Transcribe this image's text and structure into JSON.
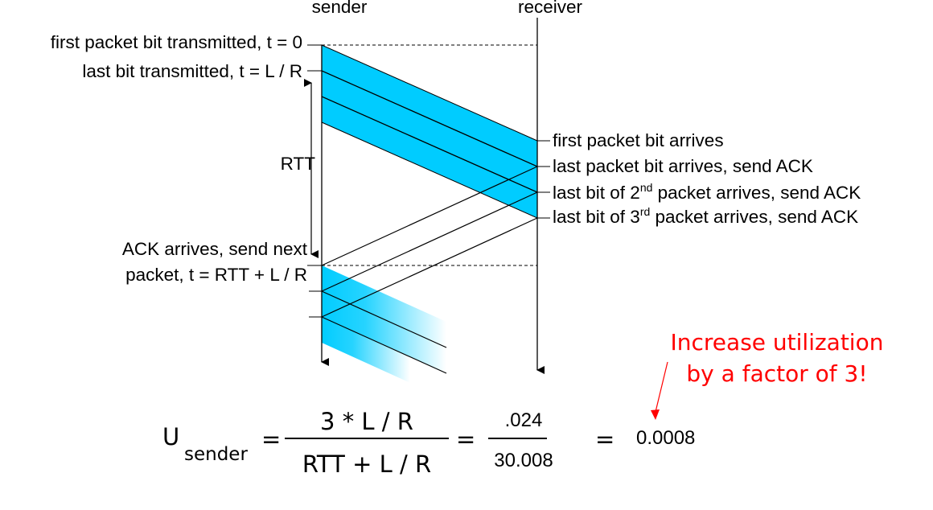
{
  "headers": {
    "sender": "sender",
    "receiver": "receiver"
  },
  "sender_labels": {
    "first_bit": "first packet bit transmitted, t = 0",
    "last_bit": "last bit transmitted, t = L / R",
    "rtt": "RTT",
    "ack_line1": "ACK arrives, send next",
    "ack_line2": "packet, t = RTT + L / R"
  },
  "receiver_labels": {
    "first_arrives": "first packet bit arrives",
    "last_arrives": "last packet bit arrives, send ACK",
    "second_pre": "last bit of 2",
    "second_sup": "nd",
    "second_post": " packet arrives, send ACK",
    "third_pre": "last bit of 3",
    "third_sup": "rd",
    "third_post": " packet arrives, send ACK"
  },
  "callout": {
    "line1": "Increase utilization",
    "line2": "by a factor of 3!"
  },
  "formula": {
    "u": "U",
    "subscript": "sender",
    "eq": "=",
    "num1": "3 * L / R",
    "den1": "RTT + L / R",
    "num2": ".024",
    "den2": "30.008",
    "result": "0.0008"
  },
  "colors": {
    "packet": "#00ccff",
    "callout": "#ff0000",
    "line": "#000000"
  }
}
